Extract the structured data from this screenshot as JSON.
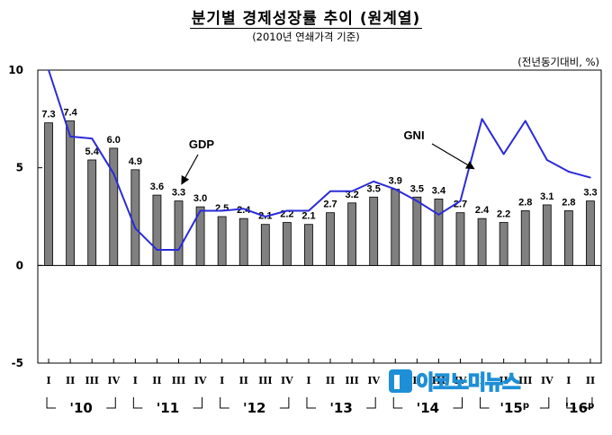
{
  "header": {
    "title": "분기별 경제성장률 추이 (원계열)",
    "subtitle": "(2010년 연쇄가격 기준)",
    "unit": "(전년동기대비, %)"
  },
  "watermark": {
    "text": "이코노미뉴스"
  },
  "chart_data": {
    "type": "bar",
    "categories": [
      "I",
      "II",
      "III",
      "IV",
      "I",
      "II",
      "III",
      "IV",
      "I",
      "II",
      "III",
      "IV",
      "I",
      "II",
      "III",
      "IV",
      "I",
      "II",
      "III",
      "IV",
      "I",
      "II",
      "III",
      "IV",
      "I",
      "II"
    ],
    "year_groups": [
      {
        "label": "'10",
        "start": 0,
        "end": 3,
        "suffix": ""
      },
      {
        "label": "'11",
        "start": 4,
        "end": 7,
        "suffix": ""
      },
      {
        "label": "'12",
        "start": 8,
        "end": 11,
        "suffix": ""
      },
      {
        "label": "'13",
        "start": 12,
        "end": 15,
        "suffix": ""
      },
      {
        "label": "'14",
        "start": 16,
        "end": 19,
        "suffix": ""
      },
      {
        "label": "'15",
        "start": 20,
        "end": 23,
        "suffix": "p"
      },
      {
        "label": "'16",
        "start": 24,
        "end": 25,
        "suffix": "p"
      }
    ],
    "series": [
      {
        "name": "GDP",
        "type": "bar",
        "color": "#808080",
        "values": [
          7.3,
          7.4,
          5.4,
          6.0,
          4.9,
          3.6,
          3.3,
          3.0,
          2.5,
          2.4,
          2.1,
          2.2,
          2.1,
          2.7,
          3.2,
          3.5,
          3.9,
          3.5,
          3.4,
          2.7,
          2.4,
          2.2,
          2.8,
          3.1,
          2.8,
          3.3
        ],
        "labels": [
          "7.3",
          "7.4",
          "5.4",
          "6.0",
          "4.9",
          "3.6",
          "3.3",
          "3.0",
          "2.5",
          "2.4",
          "2.1",
          "2.2",
          "2.1",
          "2.7",
          "3.2",
          "3.5",
          "3.9",
          "3.5",
          "3.4",
          "2.7",
          "2.4",
          "2.2",
          "2.8",
          "3.1",
          "2.8",
          "3.3"
        ]
      },
      {
        "name": "GNI",
        "type": "line",
        "color": "#2b2bd9",
        "values": [
          10.0,
          6.6,
          6.5,
          4.7,
          1.9,
          0.8,
          0.8,
          2.8,
          2.8,
          2.9,
          2.5,
          2.8,
          2.8,
          3.8,
          3.8,
          4.3,
          3.9,
          3.3,
          2.6,
          3.3,
          7.5,
          5.7,
          7.4,
          5.4,
          4.8,
          4.5
        ]
      }
    ],
    "annotations": [
      {
        "text": "GDP",
        "points_to_index": 6,
        "series": "GDP"
      },
      {
        "text": "GNI",
        "points_to_index": 19,
        "series": "GNI"
      }
    ],
    "yticks": [
      10,
      5,
      0,
      -5
    ],
    "ylim": [
      -5,
      10
    ],
    "xlabel": "",
    "ylabel": "",
    "grid": false,
    "legend": "none"
  }
}
